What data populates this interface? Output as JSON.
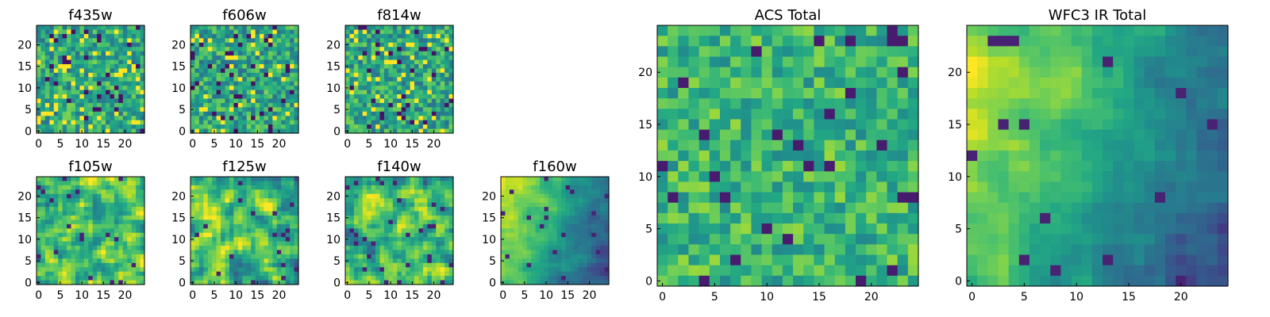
{
  "chart_data": [
    {
      "type": "heatmap",
      "title": "f435w",
      "grid_size": 25,
      "x_ticks": [
        "0",
        "5",
        "10",
        "15",
        "20"
      ],
      "y_ticks": [
        "0",
        "5",
        "10",
        "15",
        "20"
      ],
      "colormap": "viridis",
      "pattern": "noise",
      "seed": 11
    },
    {
      "type": "heatmap",
      "title": "f606w",
      "grid_size": 25,
      "x_ticks": [
        "0",
        "5",
        "10",
        "15",
        "20"
      ],
      "y_ticks": [
        "0",
        "5",
        "10",
        "15",
        "20"
      ],
      "colormap": "viridis",
      "pattern": "noise",
      "seed": 23
    },
    {
      "type": "heatmap",
      "title": "f814w",
      "grid_size": 25,
      "x_ticks": [
        "0",
        "5",
        "10",
        "15",
        "20"
      ],
      "y_ticks": [
        "0",
        "5",
        "10",
        "15",
        "20"
      ],
      "colormap": "viridis",
      "pattern": "noise",
      "seed": 37
    },
    {
      "type": "heatmap",
      "title": "f105w",
      "grid_size": 25,
      "x_ticks": [
        "0",
        "5",
        "10",
        "15",
        "20"
      ],
      "y_ticks": [
        "0",
        "5",
        "10",
        "15",
        "20"
      ],
      "colormap": "viridis",
      "pattern": "blobs",
      "seed": 41
    },
    {
      "type": "heatmap",
      "title": "f125w",
      "grid_size": 25,
      "x_ticks": [
        "0",
        "5",
        "10",
        "15",
        "20"
      ],
      "y_ticks": [
        "0",
        "5",
        "10",
        "15",
        "20"
      ],
      "colormap": "viridis",
      "pattern": "blobs",
      "seed": 53
    },
    {
      "type": "heatmap",
      "title": "f140w",
      "grid_size": 25,
      "x_ticks": [
        "0",
        "5",
        "10",
        "15",
        "20"
      ],
      "y_ticks": [
        "0",
        "5",
        "10",
        "15",
        "20"
      ],
      "colormap": "viridis",
      "pattern": "blobs",
      "seed": 67
    },
    {
      "type": "heatmap",
      "title": "f160w",
      "grid_size": 25,
      "x_ticks": [
        "0",
        "5",
        "10",
        "15",
        "20"
      ],
      "y_ticks": [
        "0",
        "5",
        "10",
        "15",
        "20"
      ],
      "colormap": "viridis",
      "pattern": "gradient",
      "seed": 71
    },
    {
      "type": "heatmap",
      "title": "ACS Total",
      "grid_size": 25,
      "x_ticks": [
        "0",
        "5",
        "10",
        "15",
        "20"
      ],
      "y_ticks": [
        "0",
        "5",
        "10",
        "15",
        "20"
      ],
      "colormap": "viridis",
      "pattern": "noise-bright",
      "seed": 83
    },
    {
      "type": "heatmap",
      "title": "WFC3 IR Total",
      "grid_size": 25,
      "x_ticks": [
        "0",
        "5",
        "10",
        "15",
        "20"
      ],
      "y_ticks": [
        "0",
        "5",
        "10",
        "15",
        "20"
      ],
      "colormap": "viridis",
      "pattern": "gradient",
      "seed": 97
    }
  ]
}
